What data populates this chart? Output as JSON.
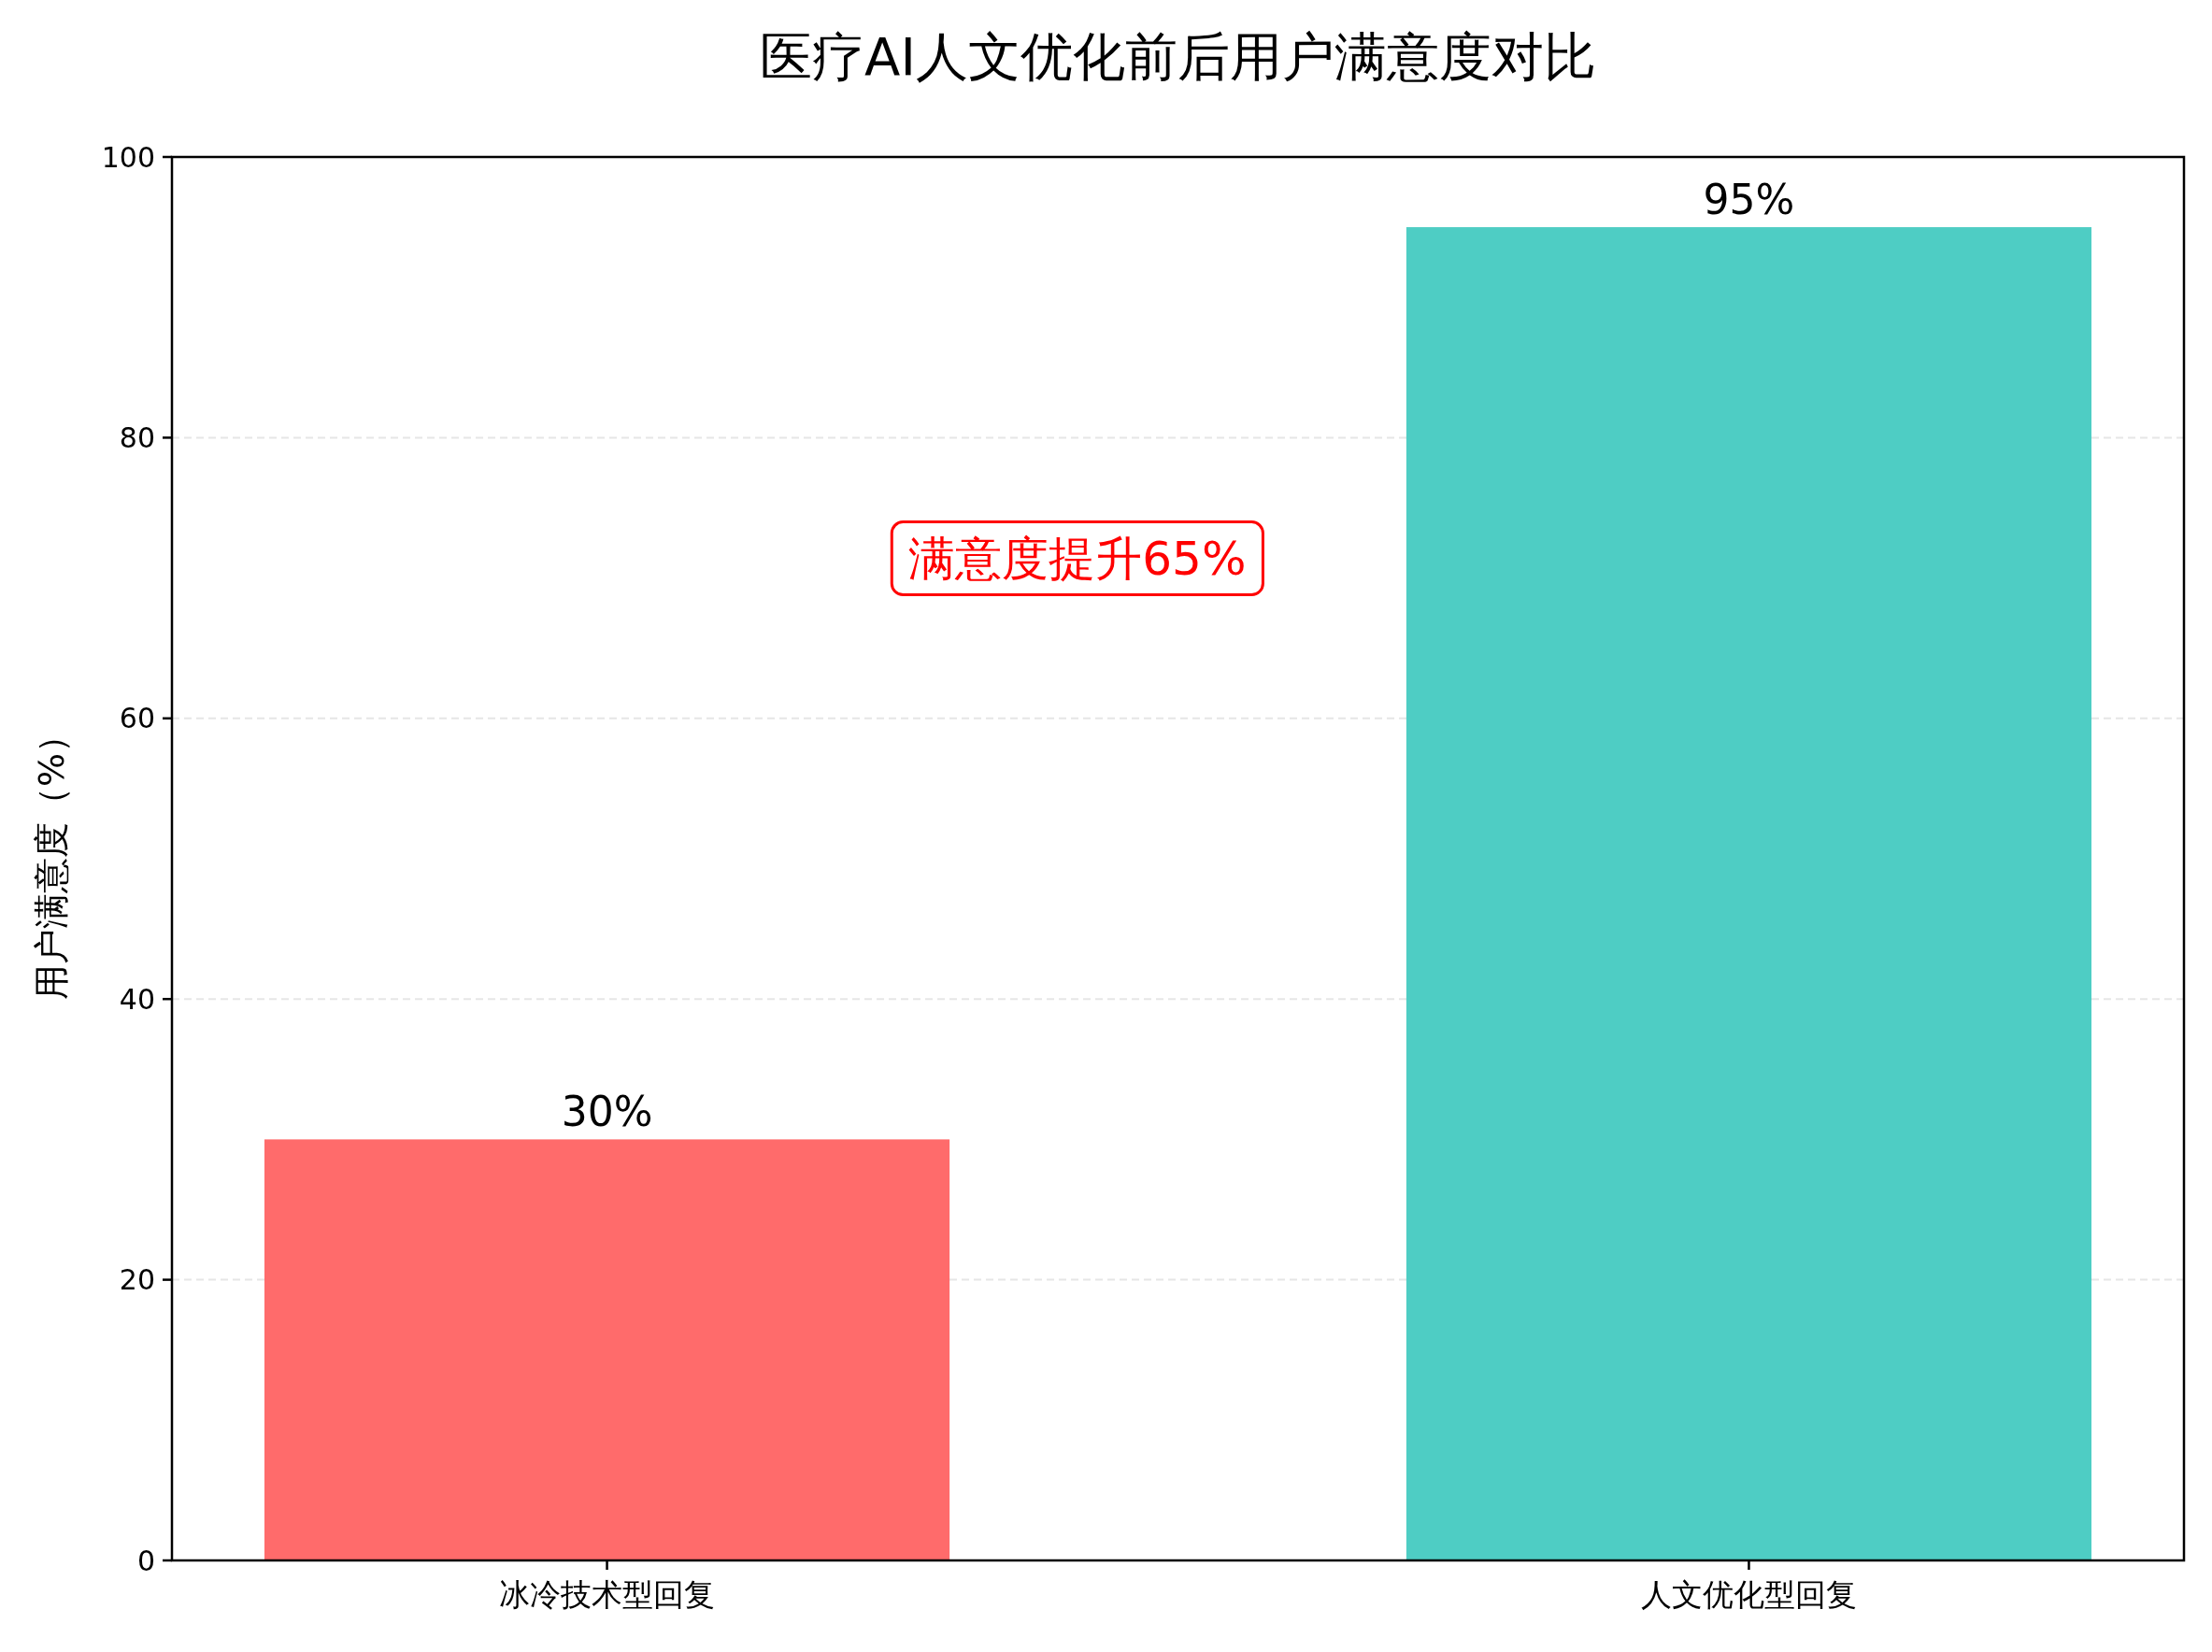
{
  "chart_data": {
    "type": "bar",
    "title": "医疗AI人文优化前后用户满意度对比",
    "ylabel": "用户满意度（%）",
    "categories": [
      "冰冷技术型回复",
      "人文优化型回复"
    ],
    "values": [
      30,
      95
    ],
    "colors": [
      "#ff6b6b",
      "#4ecdc4"
    ],
    "value_labels": [
      "30%",
      "95%"
    ],
    "ylim": [
      0,
      100
    ],
    "yticks": [
      0,
      20,
      40,
      60,
      80,
      100
    ],
    "grid": "y",
    "annotations": [
      "满意度提升65%"
    ]
  }
}
